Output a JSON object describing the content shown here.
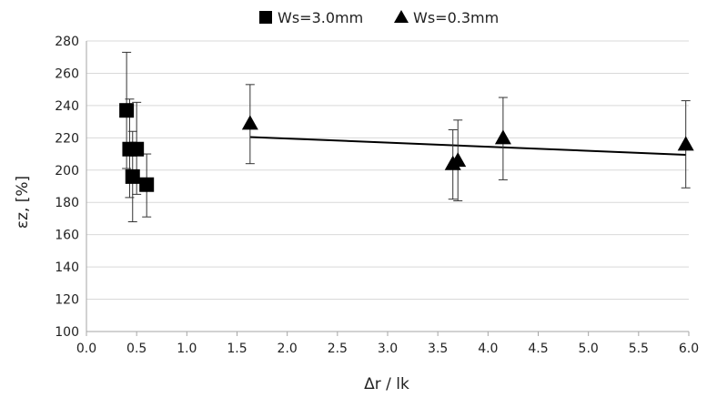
{
  "chart_data": {
    "type": "scatter",
    "title": "",
    "xlabel": "Δr / lk",
    "ylabel": "εz, [%]",
    "xlim": [
      0.0,
      6.0
    ],
    "ylim": [
      100,
      280
    ],
    "x_ticks": [
      "0.0",
      "0.5",
      "1.0",
      "1.5",
      "2.0",
      "2.5",
      "3.0",
      "3.5",
      "4.0",
      "4.5",
      "5.0",
      "5.5",
      "6.0"
    ],
    "y_ticks": [
      "100",
      "120",
      "140",
      "160",
      "180",
      "200",
      "220",
      "240",
      "260",
      "280"
    ],
    "x_tick_values": [
      0.0,
      0.5,
      1.0,
      1.5,
      2.0,
      2.5,
      3.0,
      3.5,
      4.0,
      4.5,
      5.0,
      5.5,
      6.0
    ],
    "y_tick_values": [
      100,
      120,
      140,
      160,
      180,
      200,
      220,
      240,
      260,
      280
    ],
    "grid": "horizontal",
    "legend_position": "top",
    "series": [
      {
        "name": "Ws=3.0mm",
        "marker": "square",
        "color": "#000000",
        "points": [
          {
            "x": 0.4,
            "y": 237,
            "err_low": 201,
            "err_high": 273
          },
          {
            "x": 0.43,
            "y": 213,
            "err_low": 183,
            "err_high": 244
          },
          {
            "x": 0.46,
            "y": 196,
            "err_low": 168,
            "err_high": 224
          },
          {
            "x": 0.5,
            "y": 213,
            "err_low": 185,
            "err_high": 242
          },
          {
            "x": 0.6,
            "y": 191,
            "err_low": 171,
            "err_high": 210
          }
        ]
      },
      {
        "name": "Ws=0.3mm",
        "marker": "triangle",
        "color": "#000000",
        "points": [
          {
            "x": 1.63,
            "y": 229,
            "err_low": 204,
            "err_high": 253
          },
          {
            "x": 3.65,
            "y": 204,
            "err_low": 182,
            "err_high": 225
          },
          {
            "x": 3.7,
            "y": 206,
            "err_low": 181,
            "err_high": 231
          },
          {
            "x": 4.15,
            "y": 220,
            "err_low": 194,
            "err_high": 245
          },
          {
            "x": 5.97,
            "y": 216,
            "err_low": 189,
            "err_high": 243
          }
        ],
        "trendline": {
          "x": [
            1.63,
            5.97
          ],
          "y": [
            220.5,
            209.5
          ]
        }
      }
    ]
  }
}
